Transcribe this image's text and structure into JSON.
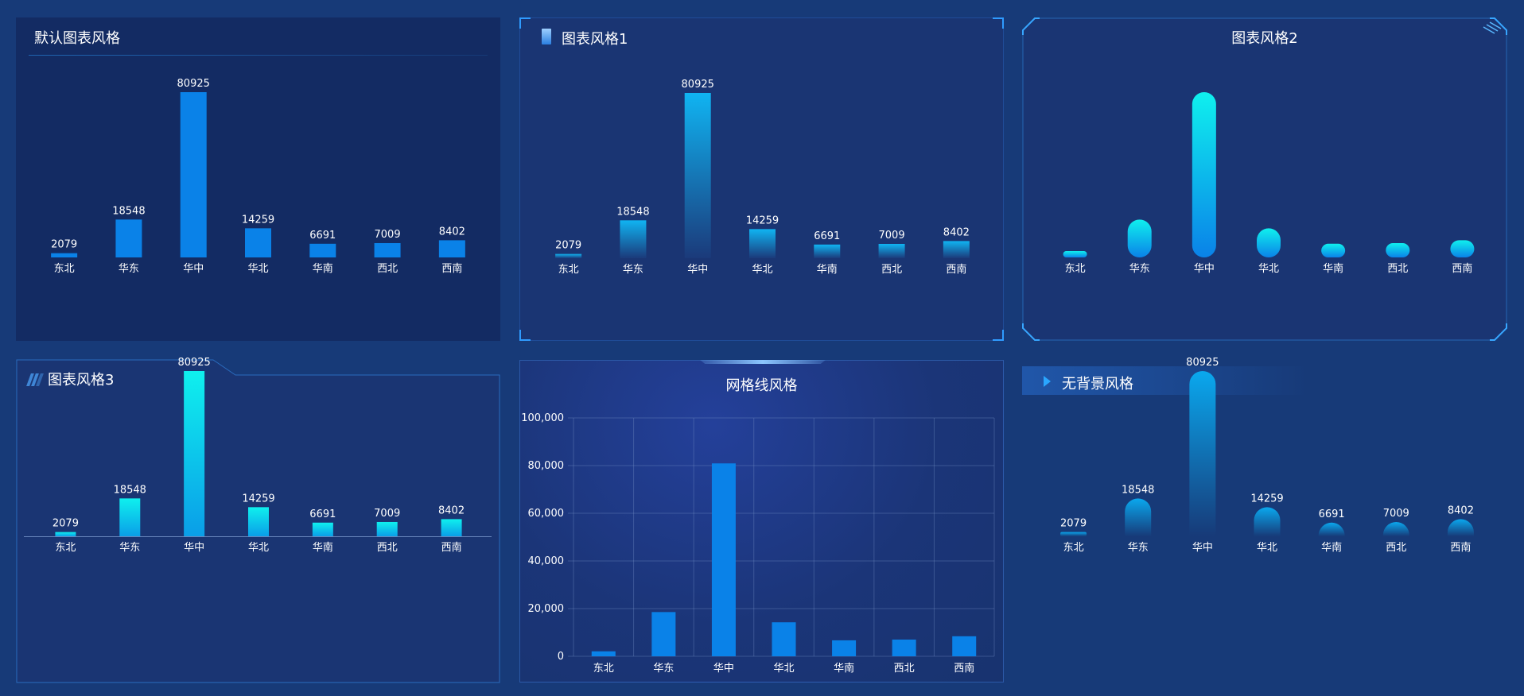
{
  "chart_data": [
    {
      "id": "p0",
      "type": "bar",
      "title": "默认图表风格",
      "style": "default",
      "categories": [
        "东北",
        "华东",
        "华中",
        "华北",
        "华南",
        "西北",
        "西南"
      ],
      "values": [
        2079,
        18548,
        80925,
        14259,
        6691,
        7009,
        8402
      ],
      "ylim": [
        0,
        80925
      ],
      "grid": false,
      "show_value_labels": true,
      "colors": {
        "bar": "#0a82e8"
      }
    },
    {
      "id": "p1",
      "type": "bar",
      "title": "图表风格1",
      "style": "gradient",
      "categories": [
        "东北",
        "华东",
        "华中",
        "华北",
        "华南",
        "西北",
        "西南"
      ],
      "values": [
        2079,
        18548,
        80925,
        14259,
        6691,
        7009,
        8402
      ],
      "ylim": [
        0,
        80925
      ],
      "grid": false,
      "show_value_labels": true,
      "colors": {
        "bar_top": "#10b4f2",
        "bar_bottom": "#1b3a7a"
      }
    },
    {
      "id": "p2",
      "type": "bar",
      "title": "图表风格2",
      "style": "capsule",
      "categories": [
        "东北",
        "华东",
        "华中",
        "华北",
        "华南",
        "西北",
        "西南"
      ],
      "values": [
        2079,
        18548,
        80925,
        14259,
        6691,
        7009,
        8402
      ],
      "ylim": [
        0,
        80925
      ],
      "grid": false,
      "show_value_labels": false,
      "colors": {
        "bar_top": "#0ff0ee",
        "bar_bottom": "#0a82e8"
      }
    },
    {
      "id": "p3",
      "type": "bar",
      "title": "图表风格3",
      "style": "gradient-axis",
      "categories": [
        "东北",
        "华东",
        "华中",
        "华北",
        "华南",
        "西北",
        "西南"
      ],
      "values": [
        2079,
        18548,
        80925,
        14259,
        6691,
        7009,
        8402
      ],
      "ylim": [
        0,
        80925
      ],
      "grid": false,
      "show_value_labels": true,
      "colors": {
        "bar_top": "#0ff0ee",
        "bar_bottom": "#0a9ee8"
      }
    },
    {
      "id": "p4",
      "type": "bar",
      "title": "网格线风格",
      "style": "grid",
      "categories": [
        "东北",
        "华东",
        "华中",
        "华北",
        "华南",
        "西北",
        "西南"
      ],
      "values": [
        2079,
        18548,
        80925,
        14259,
        6691,
        7009,
        8402
      ],
      "ylim": [
        0,
        100000
      ],
      "yticks": [
        "0",
        "20,000",
        "40,000",
        "60,000",
        "80,000",
        "100,000"
      ],
      "grid": true,
      "show_value_labels": false,
      "colors": {
        "bar": "#0a82e8"
      }
    },
    {
      "id": "p5",
      "type": "bar",
      "title": "无背景风格",
      "style": "rounded-gradient",
      "categories": [
        "东北",
        "华东",
        "华中",
        "华北",
        "华南",
        "西北",
        "西南"
      ],
      "values": [
        2079,
        18548,
        80925,
        14259,
        6691,
        7009,
        8402
      ],
      "ylim": [
        0,
        80925
      ],
      "grid": false,
      "show_value_labels": true,
      "colors": {
        "bar_top": "#0aa8ee",
        "bar_bottom": "#173a78"
      }
    }
  ]
}
